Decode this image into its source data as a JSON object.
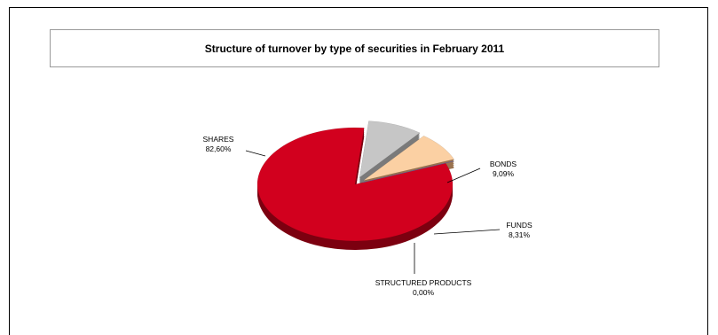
{
  "chart_data": {
    "type": "pie",
    "title": "Structure of turnover by type of securities in February 2011",
    "slices": [
      {
        "label": "SHARES",
        "value_text": "82,60%",
        "value": 82.6,
        "color": "#d2001e",
        "side": "#7c0010"
      },
      {
        "label": "BONDS",
        "value_text": "9,09%",
        "value": 9.09,
        "color": "#c6c6c6",
        "side": "#7a7a7a"
      },
      {
        "label": "FUNDS",
        "value_text": "8,31%",
        "value": 8.31,
        "color": "#fbd0a3",
        "side": "#9a7350"
      },
      {
        "label": "STRUCTURED PRODUCTS",
        "value_text": "0,00%",
        "value": 0.0,
        "color": "#5b5b9e",
        "side": "#33335c"
      }
    ]
  }
}
